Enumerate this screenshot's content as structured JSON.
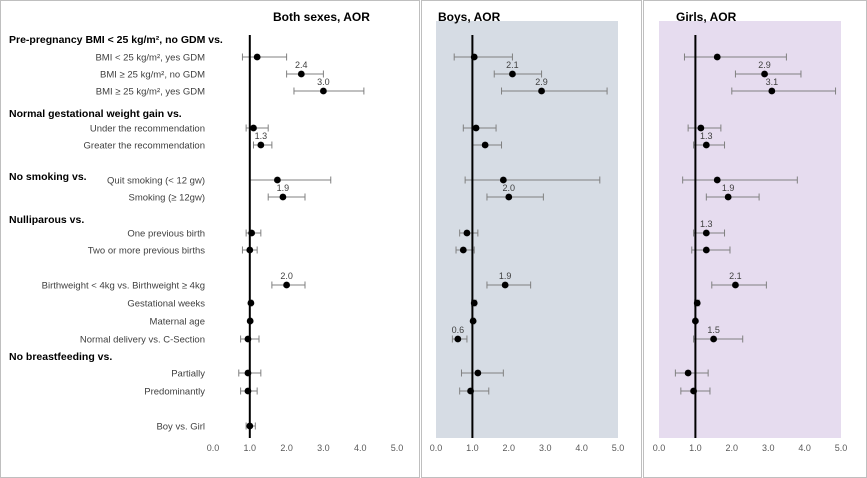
{
  "chart_data": {
    "type": "forest-plot",
    "xlim": [
      0,
      5
    ],
    "xticks": [
      "0.0",
      "1.0",
      "2.0",
      "3.0",
      "4.0",
      "5.0"
    ],
    "reference_line": 1.0,
    "colors": {
      "both_bg": "#ffffff",
      "boys_bg": "#d6dce4",
      "girls_bg": "#e6dcef",
      "ink": "#000000",
      "grey": "#808080",
      "frame": "#bfbfbf"
    },
    "rows": [
      {
        "label": "Pre-pregnancy BMI < 25 kg/m², no GDM vs.",
        "header": true
      },
      {
        "label": "BMI < 25 kg/m², yes GDM"
      },
      {
        "label": "BMI ≥ 25 kg/m², no GDM"
      },
      {
        "label": "BMI ≥ 25 kg/m², yes GDM"
      },
      {
        "label": "Normal gestational weight gain vs.",
        "header": true
      },
      {
        "label": "Under the recommendation"
      },
      {
        "label": "Greater the recommendation"
      },
      {
        "label": "No smoking vs.",
        "header": true
      },
      {
        "label": "Quit smoking (< 12 gw)"
      },
      {
        "label": "Smoking (≥ 12gw)"
      },
      {
        "label": "Nulliparous vs.",
        "header": true
      },
      {
        "label": "One previous birth"
      },
      {
        "label": "Two or more previous births"
      },
      {
        "label": "Birthweight < 4kg vs. Birthweight ≥ 4kg"
      },
      {
        "label": "Gestational weeks"
      },
      {
        "label": "Maternal age"
      },
      {
        "label": "Normal delivery vs. C-Section"
      },
      {
        "label": "No breastfeeding vs.",
        "header": true
      },
      {
        "label": "Partially"
      },
      {
        "label": "Predominantly"
      },
      {
        "label": "Boy vs. Girl"
      }
    ],
    "panels": [
      {
        "name": "Both sexes",
        "title": "Both sexes, AOR",
        "points": [
          {
            "row": 1,
            "aor": 1.2,
            "low": 0.8,
            "high": 2.0
          },
          {
            "row": 2,
            "aor": 2.4,
            "low": 2.0,
            "high": 3.0,
            "label": "2.4"
          },
          {
            "row": 3,
            "aor": 3.0,
            "low": 2.2,
            "high": 4.1,
            "label": "3.0"
          },
          {
            "row": 5,
            "aor": 1.1,
            "low": 0.9,
            "high": 1.5
          },
          {
            "row": 6,
            "aor": 1.3,
            "low": 1.1,
            "high": 1.6,
            "label": "1.3"
          },
          {
            "row": 8,
            "aor": 1.75,
            "low": 1.0,
            "high": 3.2
          },
          {
            "row": 9,
            "aor": 1.9,
            "low": 1.5,
            "high": 2.5,
            "label": "1.9"
          },
          {
            "row": 11,
            "aor": 1.05,
            "low": 0.9,
            "high": 1.3
          },
          {
            "row": 12,
            "aor": 1.0,
            "low": 0.8,
            "high": 1.2
          },
          {
            "row": 13,
            "aor": 2.0,
            "low": 1.6,
            "high": 2.5,
            "label": "2.0"
          },
          {
            "row": 14,
            "aor": 1.03,
            "low": 1.0,
            "high": 1.06
          },
          {
            "row": 15,
            "aor": 1.01,
            "low": 0.99,
            "high": 1.03
          },
          {
            "row": 16,
            "aor": 0.95,
            "low": 0.75,
            "high": 1.25
          },
          {
            "row": 18,
            "aor": 0.95,
            "low": 0.7,
            "high": 1.3
          },
          {
            "row": 19,
            "aor": 0.95,
            "low": 0.75,
            "high": 1.2
          },
          {
            "row": 20,
            "aor": 1.0,
            "low": 0.9,
            "high": 1.15
          }
        ]
      },
      {
        "name": "Boys",
        "title": "Boys, AOR",
        "points": [
          {
            "row": 1,
            "aor": 1.05,
            "low": 0.5,
            "high": 2.1
          },
          {
            "row": 2,
            "aor": 2.1,
            "low": 1.6,
            "high": 2.9,
            "label": "2.1"
          },
          {
            "row": 3,
            "aor": 2.9,
            "low": 1.8,
            "high": 4.7,
            "label": "2.9"
          },
          {
            "row": 5,
            "aor": 1.1,
            "low": 0.75,
            "high": 1.65
          },
          {
            "row": 6,
            "aor": 1.35,
            "low": 1.0,
            "high": 1.8
          },
          {
            "row": 8,
            "aor": 1.85,
            "low": 0.8,
            "high": 4.5
          },
          {
            "row": 9,
            "aor": 2.0,
            "low": 1.4,
            "high": 2.95,
            "label": "2.0"
          },
          {
            "row": 11,
            "aor": 0.85,
            "low": 0.65,
            "high": 1.15
          },
          {
            "row": 12,
            "aor": 0.75,
            "low": 0.55,
            "high": 1.05
          },
          {
            "row": 13,
            "aor": 1.9,
            "low": 1.4,
            "high": 2.6,
            "label": "1.9"
          },
          {
            "row": 14,
            "aor": 1.05,
            "low": 0.98,
            "high": 1.1
          },
          {
            "row": 15,
            "aor": 1.02,
            "low": 0.98,
            "high": 1.05
          },
          {
            "row": 16,
            "aor": 0.6,
            "low": 0.45,
            "high": 0.85,
            "label": "0.6"
          },
          {
            "row": 18,
            "aor": 1.15,
            "low": 0.7,
            "high": 1.85
          },
          {
            "row": 19,
            "aor": 0.95,
            "low": 0.65,
            "high": 1.45
          },
          {
            "row": 20,
            "aor": null
          }
        ]
      },
      {
        "name": "Girls",
        "title": "Girls, AOR",
        "points": [
          {
            "row": 1,
            "aor": 1.6,
            "low": 0.7,
            "high": 3.5
          },
          {
            "row": 2,
            "aor": 2.9,
            "low": 2.1,
            "high": 3.9,
            "label": "2.9"
          },
          {
            "row": 3,
            "aor": 3.1,
            "low": 2.0,
            "high": 4.85,
            "label": "3.1"
          },
          {
            "row": 5,
            "aor": 1.15,
            "low": 0.8,
            "high": 1.7
          },
          {
            "row": 6,
            "aor": 1.3,
            "low": 0.95,
            "high": 1.8,
            "label": "1.3"
          },
          {
            "row": 8,
            "aor": 1.6,
            "low": 0.65,
            "high": 3.8
          },
          {
            "row": 9,
            "aor": 1.9,
            "low": 1.3,
            "high": 2.75,
            "label": "1.9"
          },
          {
            "row": 11,
            "aor": 1.3,
            "low": 0.95,
            "high": 1.8,
            "label": "1.3"
          },
          {
            "row": 12,
            "aor": 1.3,
            "low": 0.9,
            "high": 1.95
          },
          {
            "row": 13,
            "aor": 2.1,
            "low": 1.45,
            "high": 2.95,
            "label": "2.1"
          },
          {
            "row": 14,
            "aor": 1.05,
            "low": 0.98,
            "high": 1.1
          },
          {
            "row": 15,
            "aor": 1.0,
            "low": 0.98,
            "high": 1.03
          },
          {
            "row": 16,
            "aor": 1.5,
            "low": 0.95,
            "high": 2.3,
            "label": "1.5"
          },
          {
            "row": 18,
            "aor": 0.8,
            "low": 0.45,
            "high": 1.35
          },
          {
            "row": 19,
            "aor": 0.95,
            "low": 0.6,
            "high": 1.4
          },
          {
            "row": 20,
            "aor": null
          }
        ]
      }
    ]
  }
}
